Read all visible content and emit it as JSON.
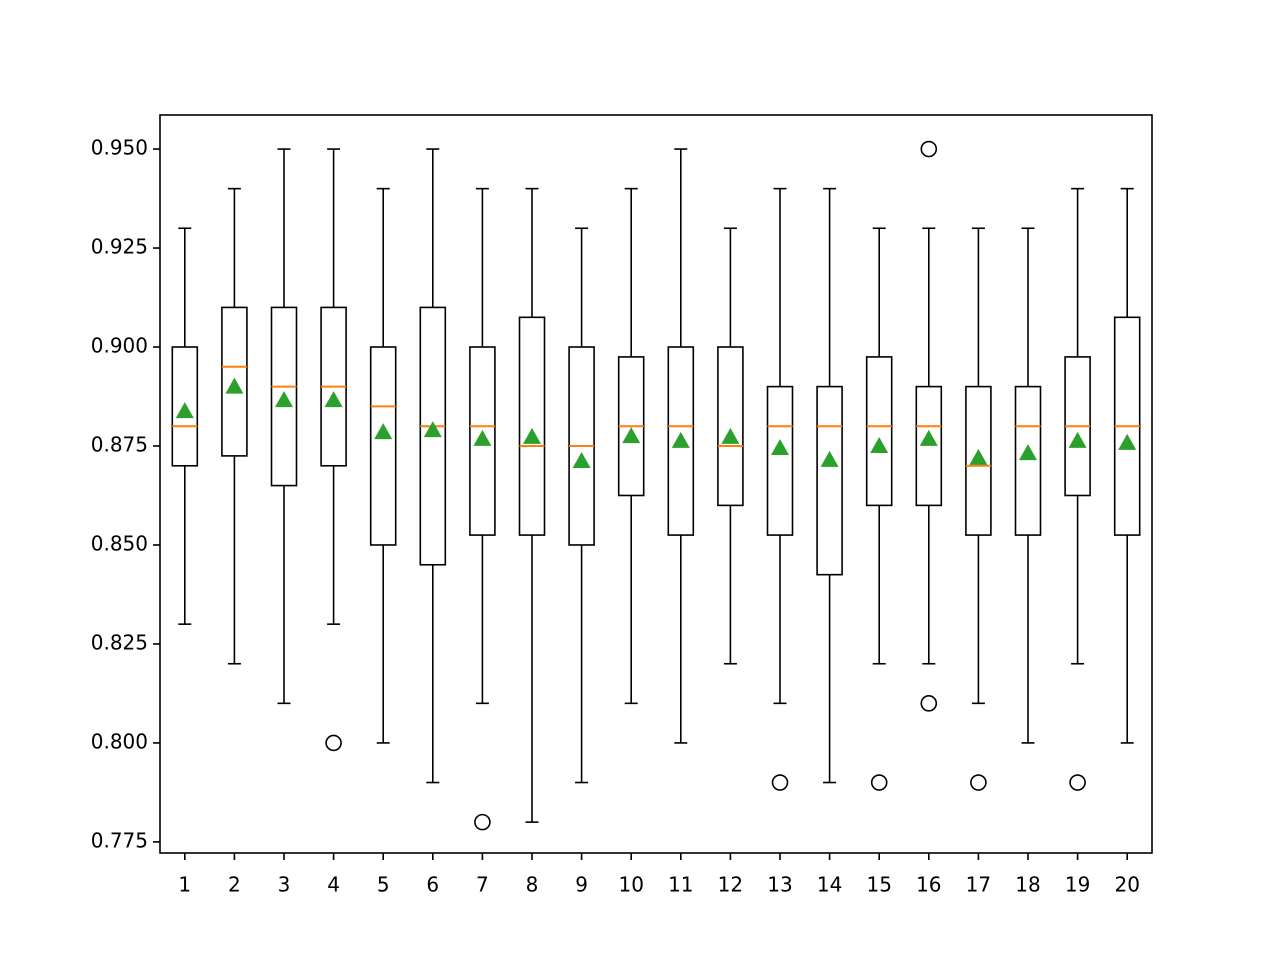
{
  "chart_data": {
    "type": "box",
    "categories": [
      "1",
      "2",
      "3",
      "4",
      "5",
      "6",
      "7",
      "8",
      "9",
      "10",
      "11",
      "12",
      "13",
      "14",
      "15",
      "16",
      "17",
      "18",
      "19",
      "20"
    ],
    "boxes": [
      {
        "whislo": 0.83,
        "q1": 0.87,
        "med": 0.88,
        "q3": 0.9,
        "whishi": 0.93,
        "mean": 0.8838,
        "fliers": []
      },
      {
        "whislo": 0.82,
        "q1": 0.8725,
        "med": 0.895,
        "q3": 0.91,
        "whishi": 0.94,
        "mean": 0.89,
        "fliers": []
      },
      {
        "whislo": 0.81,
        "q1": 0.865,
        "med": 0.89,
        "q3": 0.91,
        "whishi": 0.95,
        "mean": 0.8866,
        "fliers": []
      },
      {
        "whislo": 0.83,
        "q1": 0.87,
        "med": 0.89,
        "q3": 0.91,
        "whishi": 0.95,
        "mean": 0.8866,
        "fliers": [
          0.8
        ]
      },
      {
        "whislo": 0.8,
        "q1": 0.85,
        "med": 0.885,
        "q3": 0.9,
        "whishi": 0.94,
        "mean": 0.8785,
        "fliers": []
      },
      {
        "whislo": 0.79,
        "q1": 0.845,
        "med": 0.88,
        "q3": 0.91,
        "whishi": 0.95,
        "mean": 0.879,
        "fliers": []
      },
      {
        "whislo": 0.81,
        "q1": 0.8525,
        "med": 0.88,
        "q3": 0.9,
        "whishi": 0.94,
        "mean": 0.8768,
        "fliers": [
          0.78
        ]
      },
      {
        "whislo": 0.78,
        "q1": 0.8525,
        "med": 0.875,
        "q3": 0.9075,
        "whishi": 0.94,
        "mean": 0.8773,
        "fliers": []
      },
      {
        "whislo": 0.79,
        "q1": 0.85,
        "med": 0.875,
        "q3": 0.9,
        "whishi": 0.93,
        "mean": 0.8712,
        "fliers": []
      },
      {
        "whislo": 0.81,
        "q1": 0.8625,
        "med": 0.88,
        "q3": 0.8975,
        "whishi": 0.94,
        "mean": 0.8775,
        "fliers": []
      },
      {
        "whislo": 0.8,
        "q1": 0.8525,
        "med": 0.88,
        "q3": 0.9,
        "whishi": 0.95,
        "mean": 0.8763,
        "fliers": []
      },
      {
        "whislo": 0.82,
        "q1": 0.86,
        "med": 0.875,
        "q3": 0.9,
        "whishi": 0.93,
        "mean": 0.8773,
        "fliers": []
      },
      {
        "whislo": 0.81,
        "q1": 0.8525,
        "med": 0.88,
        "q3": 0.89,
        "whishi": 0.94,
        "mean": 0.8745,
        "fliers": [
          0.79
        ]
      },
      {
        "whislo": 0.79,
        "q1": 0.8425,
        "med": 0.88,
        "q3": 0.89,
        "whishi": 0.94,
        "mean": 0.8715,
        "fliers": []
      },
      {
        "whislo": 0.82,
        "q1": 0.86,
        "med": 0.88,
        "q3": 0.8975,
        "whishi": 0.93,
        "mean": 0.875,
        "fliers": [
          0.79
        ]
      },
      {
        "whislo": 0.82,
        "q1": 0.86,
        "med": 0.88,
        "q3": 0.89,
        "whishi": 0.93,
        "mean": 0.8768,
        "fliers": [
          0.95,
          0.81
        ]
      },
      {
        "whislo": 0.81,
        "q1": 0.8525,
        "med": 0.87,
        "q3": 0.89,
        "whishi": 0.93,
        "mean": 0.872,
        "fliers": [
          0.79
        ]
      },
      {
        "whislo": 0.8,
        "q1": 0.8525,
        "med": 0.88,
        "q3": 0.89,
        "whishi": 0.93,
        "mean": 0.8732,
        "fliers": []
      },
      {
        "whislo": 0.82,
        "q1": 0.8625,
        "med": 0.88,
        "q3": 0.8975,
        "whishi": 0.94,
        "mean": 0.8763,
        "fliers": [
          0.79
        ]
      },
      {
        "whislo": 0.8,
        "q1": 0.8525,
        "med": 0.88,
        "q3": 0.9075,
        "whishi": 0.94,
        "mean": 0.8758,
        "fliers": []
      }
    ],
    "box_color": "#000000",
    "median_color": "#ff7f0e",
    "mean_color": "#2ca02c",
    "xlim": [
      0.5,
      20.5
    ],
    "ylim": [
      0.7722,
      0.9586
    ],
    "yticks": [
      {
        "value": 0.775,
        "label": "0.775"
      },
      {
        "value": 0.8,
        "label": "0.800"
      },
      {
        "value": 0.825,
        "label": "0.825"
      },
      {
        "value": 0.85,
        "label": "0.850"
      },
      {
        "value": 0.875,
        "label": "0.875"
      },
      {
        "value": 0.9,
        "label": "0.900"
      },
      {
        "value": 0.925,
        "label": "0.925"
      },
      {
        "value": 0.95,
        "label": "0.950"
      }
    ]
  }
}
